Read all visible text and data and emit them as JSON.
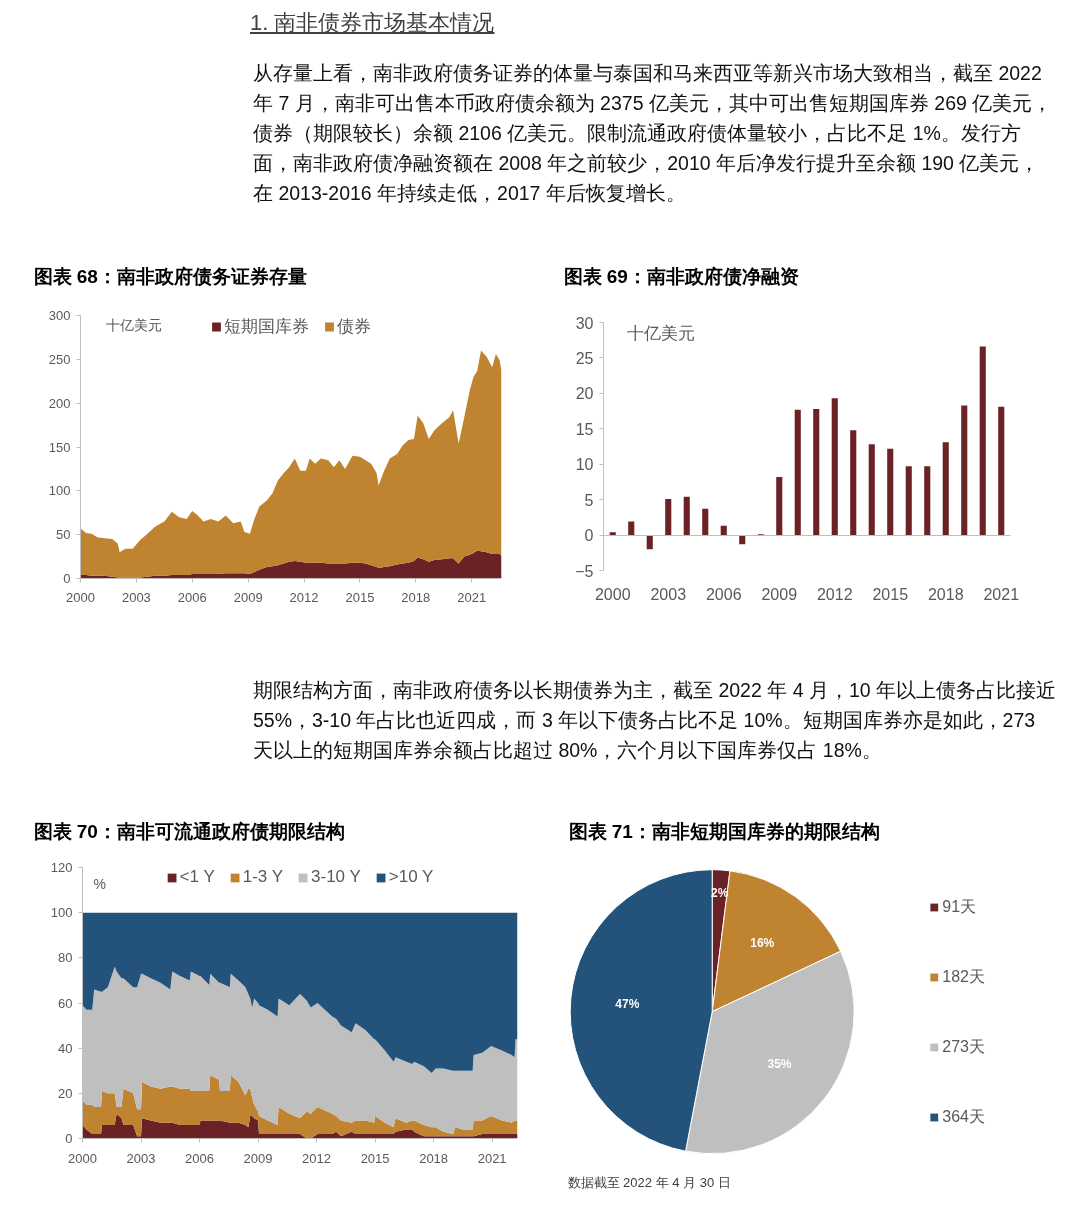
{
  "chart_data": [
    {
      "type": "other",
      "title": "1. 南非债券市场基本情况",
      "annotations": [
        "从存量上看，南非政府债务证券的体量与泰国和马来西亚等新兴市场大致相当，截至 2022 年 7 月，南非可出售本币政府债余额为 2375 亿美元，其中可出售短期国库券 269 亿美元，债券（期限较长）余额 2106 亿美元。限制流通政府债体量较小，占比不足 1%。发行方面，南非政府债净融资额在 2008 年之前较少，2010 年后净发行提升至余额 190 亿美元，在 2013-2016 年持续走低，2017 年后恢复增长。"
      ]
    },
    {
      "type": "area",
      "title": "图表 68：南非政府债务证券存量",
      "ylabel": "十亿美元",
      "stacked": true,
      "legend": "top",
      "x": [
        2000.0,
        2000.3,
        2000.6,
        2000.9,
        2001.3,
        2001.7,
        2002.0,
        2002.1,
        2002.4,
        2002.8,
        2003.2,
        2003.6,
        2004.0,
        2004.5,
        2004.9,
        2005.3,
        2005.7,
        2006.0,
        2006.3,
        2006.6,
        2007.0,
        2007.4,
        2007.8,
        2008.2,
        2008.6,
        2008.8,
        2009.1,
        2009.3,
        2009.6,
        2010.0,
        2010.3,
        2010.6,
        2010.9,
        2011.2,
        2011.5,
        2011.8,
        2012.1,
        2012.3,
        2012.6,
        2012.9,
        2013.3,
        2013.6,
        2013.9,
        2014.2,
        2014.6,
        2015.0,
        2015.3,
        2015.6,
        2015.9,
        2016.0,
        2016.3,
        2016.6,
        2017.0,
        2017.3,
        2017.6,
        2017.9,
        2018.1,
        2018.4,
        2018.7,
        2019.0,
        2019.4,
        2019.8,
        2020.0,
        2020.3,
        2020.6,
        2020.9,
        2021.1,
        2021.3,
        2021.5,
        2021.8,
        2022.1,
        2022.3,
        2022.5,
        2022.6
      ],
      "xlim": [
        2000,
        2022.6
      ],
      "xticks": [
        2000,
        2003,
        2006,
        2009,
        2012,
        2015,
        2018,
        2021
      ],
      "ylim": [
        0,
        300
      ],
      "yticks": [
        0,
        50,
        100,
        150,
        200,
        250,
        300
      ],
      "series": [
        {
          "name": "短期国库券",
          "color": "#6b2227",
          "values": [
            4,
            4,
            3,
            3,
            3,
            2,
            1,
            1,
            1,
            1,
            1,
            2,
            3,
            3,
            4,
            4,
            4,
            5,
            5,
            5,
            5,
            5,
            6,
            6,
            6,
            6,
            5,
            7,
            10,
            13,
            14,
            15,
            17,
            19,
            20,
            19,
            18,
            18,
            18,
            18,
            17,
            17,
            17,
            17,
            18,
            18,
            17,
            15,
            13,
            12,
            13,
            14,
            16,
            17,
            18,
            20,
            24,
            22,
            19,
            21,
            22,
            23,
            23,
            17,
            25,
            27,
            29,
            32,
            31,
            30,
            28,
            28,
            28,
            26
          ]
        },
        {
          "name": "债券",
          "color": "#c0832f",
          "values": [
            53,
            48,
            48,
            44,
            43,
            43,
            39,
            29,
            33,
            33,
            43,
            49,
            56,
            62,
            72,
            66,
            64,
            72,
            67,
            60,
            63,
            60,
            66,
            57,
            59,
            47,
            46,
            59,
            72,
            76,
            83,
            97,
            103,
            108,
            117,
            104,
            105,
            119,
            113,
            119,
            118,
            110,
            118,
            108,
            122,
            121,
            118,
            116,
            107,
            94,
            110,
            123,
            126,
            135,
            140,
            139,
            162,
            155,
            140,
            148,
            155,
            161,
            169,
            137,
            159,
            188,
            201,
            205,
            229,
            223,
            213,
            228,
            221,
            211
          ]
        }
      ]
    },
    {
      "type": "bar",
      "title": "图表 69：南非政府债净融资",
      "ylabel": "十亿美元",
      "color": "#6b2227",
      "x": [
        2000,
        2001,
        2002,
        2003,
        2004,
        2005,
        2006,
        2007,
        2008,
        2009,
        2010,
        2011,
        2012,
        2013,
        2014,
        2015,
        2016,
        2017,
        2018,
        2019,
        2020,
        2021
      ],
      "values": [
        0.4,
        1.9,
        -2.0,
        5.1,
        5.4,
        3.7,
        1.3,
        -1.3,
        0.1,
        8.2,
        17.7,
        17.8,
        19.3,
        14.8,
        12.8,
        12.2,
        9.7,
        9.7,
        13.1,
        18.3,
        26.6,
        18.1
      ],
      "xlim": [
        1999.5,
        2021.5
      ],
      "xticks": [
        2000,
        2003,
        2006,
        2009,
        2012,
        2015,
        2018,
        2021
      ],
      "ylim": [
        -5,
        30
      ],
      "yticks": [
        {
          "value": -5,
          "label": "−5"
        },
        0,
        5,
        10,
        15,
        20,
        25,
        30
      ]
    },
    {
      "type": "other",
      "annotations": [
        "期限结构方面，南非政府债务以长期债券为主，截至 2022 年 4 月，10 年以上债务占比接近 55%，3-10 年占比也近四成，而 3 年以下债务占比不足 10%。短期国库券亦是如此，273 天以上的短期国库券余额占比超过 80%，六个月以下国库券仅占 18%。"
      ]
    },
    {
      "type": "area",
      "title": "图表 70：南非可流通政府债期限结构",
      "ylabel": "%",
      "stacked": true,
      "legend": "top",
      "x": [
        2000.0,
        2000.2,
        2000.5,
        2000.6,
        2000.95,
        2001.0,
        2001.3,
        2001.65,
        2001.75,
        2002.0,
        2002.1,
        2002.6,
        2002.8,
        2003.0,
        2003.05,
        2003.5,
        2004.0,
        2004.5,
        2004.6,
        2005.0,
        2005.5,
        2005.55,
        2006.0,
        2006.05,
        2006.5,
        2006.55,
        2007.0,
        2007.05,
        2007.55,
        2007.6,
        2008.0,
        2008.35,
        2008.5,
        2008.6,
        2008.7,
        2008.8,
        2009.0,
        2009.05,
        2009.5,
        2010.0,
        2010.05,
        2010.6,
        2011.15,
        2011.5,
        2011.7,
        2012.05,
        2012.8,
        2013.0,
        2013.25,
        2013.8,
        2014.0,
        2014.5,
        2014.95,
        2015.0,
        2015.5,
        2015.95,
        2016.05,
        2016.6,
        2016.9,
        2017.0,
        2017.5,
        2017.9,
        2018.1,
        2018.5,
        2019.0,
        2019.1,
        2019.5,
        2020.0,
        2020.05,
        2020.5,
        2020.95,
        2021.5,
        2022.0,
        2022.15,
        2022.2,
        2022.3
      ],
      "xlim": [
        2000,
        2022.3
      ],
      "xticks": [
        2000,
        2003,
        2006,
        2009,
        2012,
        2015,
        2018,
        2021
      ],
      "ylim": [
        0,
        120
      ],
      "yticks": [
        0,
        20,
        40,
        60,
        80,
        100,
        120
      ],
      "series": [
        {
          "name": "<1 Y",
          "color": "#6b2227",
          "values": [
            6,
            4,
            2,
            2,
            2,
            6,
            6,
            6,
            11,
            9,
            6,
            6,
            1,
            1,
            9,
            8,
            7,
            7,
            7,
            6,
            6,
            6,
            6,
            8,
            8,
            8,
            8,
            8,
            7,
            7,
            7,
            6,
            5,
            10,
            10,
            9,
            8,
            2,
            2,
            2,
            2,
            2,
            2,
            0,
            0,
            2,
            2,
            3,
            1,
            3,
            2,
            2,
            2,
            2,
            2,
            2,
            3,
            4,
            4,
            3,
            1,
            1,
            1,
            1,
            1,
            1,
            1,
            1,
            1,
            2,
            2,
            2,
            2,
            2,
            2,
            2
          ]
        },
        {
          "name": "1-3 Y",
          "color": "#c0832f",
          "values": [
            11,
            11,
            13,
            12,
            12,
            15,
            14,
            14,
            3,
            5,
            16,
            14,
            12,
            12,
            16,
            15,
            15,
            16,
            16,
            16,
            16,
            15,
            15,
            13,
            13,
            20,
            18,
            13,
            14,
            21,
            18,
            13,
            17,
            12,
            8,
            6,
            4,
            8,
            6,
            4,
            12,
            9,
            7,
            12,
            11,
            12,
            9,
            7,
            7,
            4,
            6,
            6,
            5,
            8,
            5,
            3,
            6,
            3,
            4,
            5,
            5,
            4,
            4,
            2,
            1,
            4,
            3,
            3,
            7,
            6,
            8,
            6,
            5,
            6,
            6,
            6
          ]
        },
        {
          "name": "3-10 Y",
          "color": "#bfbfbf",
          "values": [
            42,
            42,
            42,
            52,
            51,
            44,
            47,
            56,
            60,
            57,
            49,
            47,
            54,
            60,
            48,
            48,
            47,
            43,
            51,
            50,
            48,
            53,
            51,
            51,
            47,
            45,
            43,
            48,
            46,
            45,
            45,
            48,
            42,
            40,
            40,
            47,
            48,
            49,
            49,
            48,
            48,
            48,
            55,
            49,
            47,
            46,
            43,
            43,
            42,
            40,
            43,
            40,
            37,
            34,
            32,
            29,
            27,
            27,
            25,
            26,
            26,
            24,
            26,
            28,
            28,
            25,
            26,
            26,
            29,
            30,
            31,
            31,
            30,
            28,
            36,
            36
          ]
        },
        {
          "name": ">10 Y",
          "color": "#23537b",
          "values": [
            41,
            43,
            43,
            34,
            35,
            35,
            33,
            24,
            26,
            29,
            29,
            33,
            33,
            27,
            27,
            29,
            31,
            34,
            26,
            28,
            30,
            26,
            28,
            28,
            32,
            27,
            31,
            31,
            33,
            27,
            30,
            33,
            36,
            38,
            42,
            38,
            40,
            41,
            43,
            46,
            38,
            41,
            36,
            39,
            42,
            40,
            46,
            47,
            50,
            53,
            49,
            52,
            56,
            56,
            61,
            66,
            64,
            66,
            67,
            66,
            68,
            71,
            69,
            69,
            70,
            70,
            70,
            70,
            63,
            62,
            59,
            61,
            63,
            64,
            56,
            56
          ]
        }
      ]
    },
    {
      "type": "pie",
      "title": "图表 71：南非短期国库券的期限结构",
      "categories": [
        "91天",
        "182天",
        "273天",
        "364天"
      ],
      "values": [
        2,
        16,
        35,
        47
      ],
      "colors": [
        "#6b2227",
        "#c0832f",
        "#bfbfbf",
        "#23537b"
      ],
      "value_labels": [
        "2%",
        "16%",
        "35%",
        "47%"
      ],
      "legend": "right",
      "annotations": [
        "数据截至 2022 年 4 月 30 日"
      ]
    }
  ]
}
